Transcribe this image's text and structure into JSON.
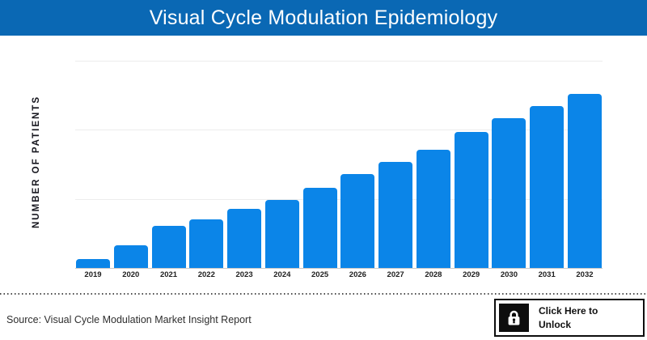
{
  "header": {
    "title": "Visual Cycle Modulation Epidemiology",
    "background_color": "#0a68b4",
    "text_color": "#ffffff"
  },
  "chart_data": {
    "type": "bar",
    "title": "Visual Cycle Modulation Epidemiology",
    "categories": [
      "2019",
      "2020",
      "2021",
      "2022",
      "2023",
      "2024",
      "2025",
      "2026",
      "2027",
      "2028",
      "2029",
      "2030",
      "2031",
      "2032"
    ],
    "values": [
      5,
      13,
      24,
      28,
      34,
      39,
      46,
      54,
      61,
      68,
      78,
      86,
      93,
      100
    ],
    "value_note": "no numeric y-axis tick labels shown; values are relative, scaled so 2032 = 100",
    "xlabel": "",
    "ylabel": "NUMBER OF PATIENTS",
    "ylim": [
      0,
      100
    ],
    "grid": "3 horizontal light-gray gridlines, evenly spaced, no y tick labels",
    "legend": "none",
    "bar_color": "#0b85e8",
    "gridline_color": "#ececec",
    "axis_line_color": "#c9c9c9"
  },
  "footer": {
    "source": "Source: Visual Cycle Modulation Market Insight Report",
    "unlock_label": "Click Here to Unlock",
    "lock_icon": "padlock-icon",
    "button_border_color": "#0d0d0d"
  }
}
